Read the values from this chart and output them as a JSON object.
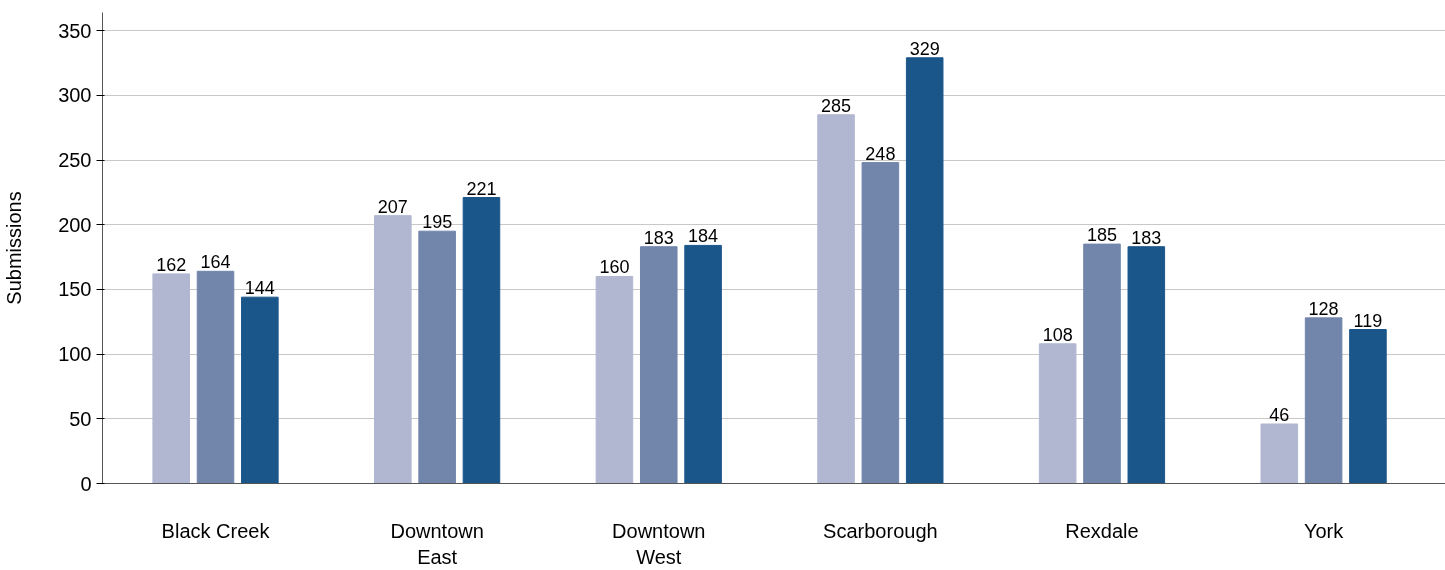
{
  "chart_data": {
    "type": "bar",
    "ylabel": "Submissions",
    "categories": [
      "Black Creek",
      "Downtown\nEast",
      "Downtown\nWest",
      "Scarborough",
      "Rexdale",
      "York"
    ],
    "series": [
      {
        "color": "#b2b7d1",
        "values": [
          162,
          207,
          160,
          285,
          108,
          46
        ]
      },
      {
        "color": "#7286ab",
        "values": [
          164,
          195,
          183,
          248,
          185,
          128
        ]
      },
      {
        "color": "#1b568a",
        "values": [
          144,
          221,
          184,
          329,
          183,
          119
        ]
      }
    ],
    "ylim": [
      0,
      364
    ],
    "yticks": [
      0,
      50,
      100,
      150,
      200,
      250,
      300,
      350
    ],
    "grid": "y",
    "data_labels": true
  }
}
